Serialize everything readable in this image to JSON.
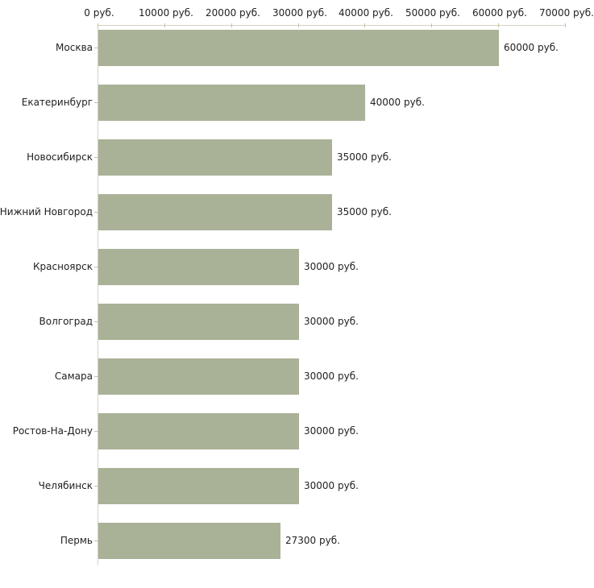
{
  "chart_data": {
    "type": "bar",
    "orientation": "horizontal",
    "title": "",
    "categories": [
      "Москва",
      "Екатеринбург",
      "Новосибирск",
      "Нижний Новгород",
      "Красноярск",
      "Волгоград",
      "Самара",
      "Ростов-На-Дону",
      "Челябинск",
      "Пермь"
    ],
    "values": [
      60000,
      40000,
      35000,
      35000,
      30000,
      30000,
      30000,
      30000,
      30000,
      27300
    ],
    "value_labels": [
      "60000 руб.",
      "40000 руб.",
      "35000 руб.",
      "35000 руб.",
      "30000 руб.",
      "30000 руб.",
      "30000 руб.",
      "30000 руб.",
      "30000 руб.",
      "27300 руб."
    ],
    "x_ticks": [
      0,
      10000,
      20000,
      30000,
      40000,
      50000,
      60000,
      70000
    ],
    "x_tick_labels": [
      "0 руб.",
      "10000 руб.",
      "20000 руб.",
      "30000 руб.",
      "40000 руб.",
      "50000 руб.",
      "60000 руб.",
      "70000 руб."
    ],
    "xlim": [
      0,
      70000
    ],
    "xlabel": "",
    "ylabel": "",
    "grid": false,
    "legend_position": "none",
    "x_axis_position": "top",
    "colors": {
      "bar_fill": "#a9b197",
      "axis_line": "#d6d3c4",
      "tick_mark": "#c3c1a2",
      "text": "#1f1f1f",
      "background": "#ffffff"
    }
  }
}
